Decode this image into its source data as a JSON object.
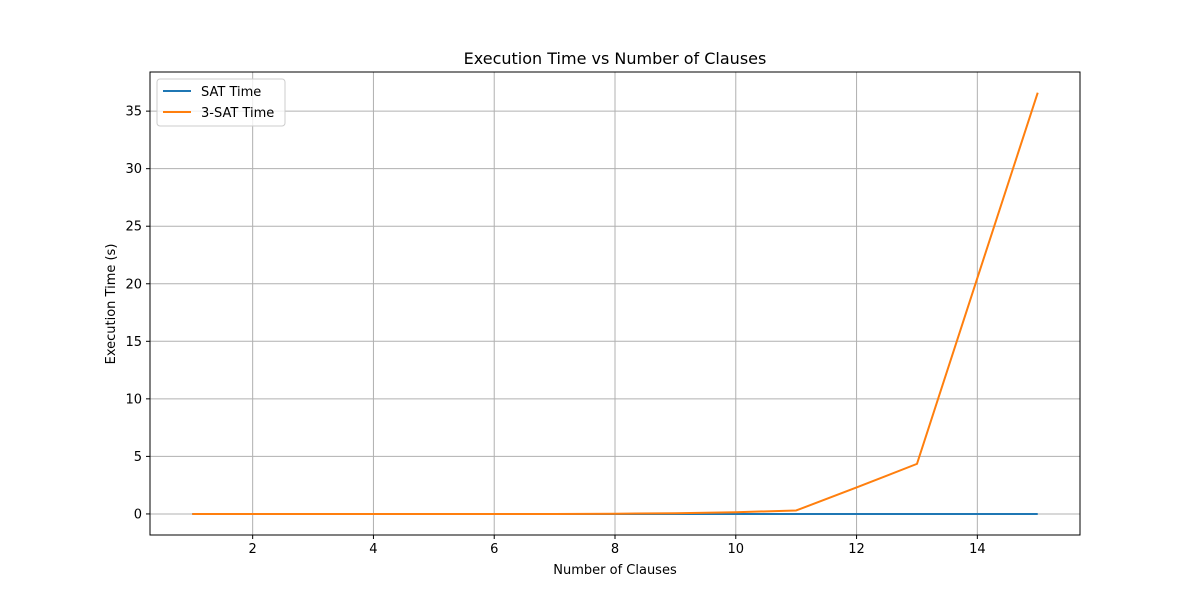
{
  "chart_data": {
    "type": "line",
    "title": "Execution Time vs Number of Clauses",
    "xlabel": "Number of Clauses",
    "ylabel": "Execution Time (s)",
    "xlim": [
      0.3,
      15.7
    ],
    "ylim": [
      -1.83,
      38.4
    ],
    "xticks": [
      2,
      4,
      6,
      8,
      10,
      12,
      14
    ],
    "yticks": [
      0,
      5,
      10,
      15,
      20,
      25,
      30,
      35
    ],
    "grid": true,
    "legend_position": "top-left",
    "series": [
      {
        "name": "SAT Time",
        "color": "#1f77b4",
        "x": [
          1,
          2,
          3,
          4,
          5,
          6,
          7,
          8,
          9,
          10,
          11,
          12,
          13,
          14,
          15
        ],
        "y": [
          0,
          0,
          0,
          0,
          0,
          0,
          0,
          0,
          0,
          0,
          0,
          0,
          0,
          0,
          0
        ]
      },
      {
        "name": "3-SAT Time",
        "color": "#ff7f0e",
        "x": [
          1,
          2,
          3,
          4,
          5,
          6,
          7,
          8,
          9,
          10,
          11,
          12,
          13,
          14,
          15
        ],
        "y": [
          0,
          0,
          0,
          0,
          0,
          0,
          0,
          0.02,
          0.06,
          0.15,
          0.3,
          2.3,
          4.35,
          20.5,
          36.6
        ]
      }
    ]
  }
}
